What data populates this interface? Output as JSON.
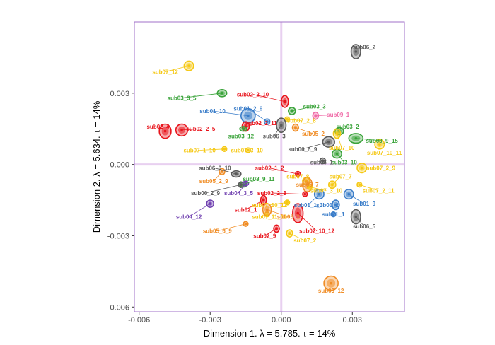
{
  "chart_data": {
    "type": "scatter",
    "title": "",
    "xlabel": "Dimension 1.   λ = 5.785.  τ = 14%",
    "ylabel": "Dimension 2.   λ = 5.634.  τ = 14%",
    "xlim": [
      -0.0062,
      0.0052
    ],
    "ylim": [
      -0.0062,
      0.006
    ],
    "x_ticks": [
      -0.006,
      -0.003,
      0.0,
      0.003
    ],
    "x_tick_labels": [
      "-0.006",
      "-0.003",
      "0.000",
      "0.003"
    ],
    "y_ticks": [
      -0.006,
      -0.003,
      0.0,
      0.003
    ],
    "y_tick_labels": [
      "-0.006",
      "-0.003",
      "0.000",
      "0.003"
    ],
    "grid": false,
    "zero_lines": true,
    "legend": "none",
    "colors": {
      "sub01": "#3a7dc9",
      "sub02": "#e8141c",
      "sub03": "#3aa33a",
      "sub04": "#7040b0",
      "sub05": "#f08c24",
      "sub06": "#5a5a5a",
      "sub07": "#f5c814",
      "sub09": "#f06ca8",
      "frame": "#a070c8",
      "zero_line": "#e8d0f0"
    },
    "points": [
      {
        "label": "sub06_2",
        "x": 0.00315,
        "y": 0.00475,
        "g": "sub06",
        "rx": 0.0002,
        "ry": 0.0003,
        "lx": 0.0035,
        "ly": 0.00495
      },
      {
        "label": "sub07_12",
        "x": -0.0039,
        "y": 0.00415,
        "g": "sub07",
        "rx": 0.0002,
        "ry": 0.0002,
        "lx": -0.0049,
        "ly": 0.0039
      },
      {
        "label": "sub03_3_5",
        "x": -0.0025,
        "y": 0.003,
        "g": "sub03",
        "rx": 0.0002,
        "ry": 0.00015,
        "lx": -0.0042,
        "ly": 0.0028
      },
      {
        "label": "sub02_2_10",
        "x": 0.00015,
        "y": 0.00265,
        "g": "sub02",
        "rx": 0.00015,
        "ry": 0.00025,
        "lx": -0.0012,
        "ly": 0.00295
      },
      {
        "label": "sub03_3",
        "x": 0.00045,
        "y": 0.00225,
        "g": "sub03",
        "rx": 0.00015,
        "ry": 0.00015,
        "lx": 0.0014,
        "ly": 0.00245
      },
      {
        "label": "sub01_10",
        "x": -0.0014,
        "y": 0.00205,
        "g": "sub01",
        "rx": 0.0003,
        "ry": 0.0003,
        "lx": -0.0029,
        "ly": 0.00225
      },
      {
        "label": "sub01_2_9",
        "x": -0.0006,
        "y": 0.0018,
        "g": "sub01",
        "rx": 0.00012,
        "ry": 0.00012,
        "lx": -0.0014,
        "ly": 0.00235
      },
      {
        "label": "sub09_1",
        "x": 0.00145,
        "y": 0.00205,
        "g": "sub09",
        "rx": 0.00012,
        "ry": 0.00015,
        "lx": 0.0024,
        "ly": 0.0021
      },
      {
        "label": "sub07_2_8",
        "x": 0.00025,
        "y": 0.0019,
        "g": "sub07",
        "rx": 0.0001,
        "ry": 0.0001,
        "lx": 0.00085,
        "ly": 0.00185
      },
      {
        "label": "sub02_2_11",
        "x": -0.0015,
        "y": 0.0016,
        "g": "sub02",
        "rx": 0.00015,
        "ry": 0.0002,
        "lx": -0.00085,
        "ly": 0.00175
      },
      {
        "label": "sub02_4",
        "x": -0.0049,
        "y": 0.0014,
        "g": "sub02",
        "rx": 0.00025,
        "ry": 0.0003,
        "lx": -0.0052,
        "ly": 0.0016
      },
      {
        "label": "sub02_2_5",
        "x": -0.0042,
        "y": 0.00145,
        "g": "sub02",
        "rx": 0.00025,
        "ry": 0.00025,
        "lx": -0.0034,
        "ly": 0.0015
      },
      {
        "label": "sub03_12",
        "x": -0.0016,
        "y": 0.0015,
        "g": "sub03",
        "rx": 0.00015,
        "ry": 0.0001,
        "lx": -0.0017,
        "ly": 0.0012
      },
      {
        "label": "sub06_3",
        "x": 0.0,
        "y": 0.00165,
        "g": "sub06",
        "rx": 0.0002,
        "ry": 0.0003,
        "lx": -0.0003,
        "ly": 0.0012
      },
      {
        "label": "sub05_2",
        "x": 0.0006,
        "y": 0.00155,
        "g": "sub05",
        "rx": 0.00013,
        "ry": 0.00015,
        "lx": 0.00135,
        "ly": 0.0013
      },
      {
        "label": "sub03_2",
        "x": 0.00245,
        "y": 0.0014,
        "g": "sub03",
        "rx": 0.00018,
        "ry": 0.00015,
        "lx": 0.0028,
        "ly": 0.0016
      },
      {
        "label": "sub06_6_9",
        "x": 0.002,
        "y": 0.00095,
        "g": "sub06",
        "rx": 0.00025,
        "ry": 0.00022,
        "lx": 0.0009,
        "ly": 0.00065
      },
      {
        "label": "sub03_9_15",
        "x": 0.00315,
        "y": 0.0011,
        "g": "sub03",
        "rx": 0.0003,
        "ry": 0.0002,
        "lx": 0.00425,
        "ly": 0.001
      },
      {
        "label": "sub07_10",
        "x": 0.00235,
        "y": 0.0013,
        "g": "sub07",
        "rx": 0.00015,
        "ry": 0.0002,
        "lx": 0.00255,
        "ly": 0.0007
      },
      {
        "label": "sub07_1_10",
        "x": -0.0024,
        "y": 0.00065,
        "g": "sub07",
        "rx": 0.0001,
        "ry": 0.0001,
        "lx": -0.00345,
        "ly": 0.0006
      },
      {
        "label": "sub07_3_10",
        "x": -0.0014,
        "y": 0.0006,
        "g": "sub07",
        "rx": 0.0001,
        "ry": 0.0001,
        "lx": -0.00145,
        "ly": 0.0006
      },
      {
        "label": "sub03_10",
        "x": 0.00235,
        "y": 0.00045,
        "g": "sub03",
        "rx": 0.0002,
        "ry": 0.00018,
        "lx": 0.00265,
        "ly": 0.0001
      },
      {
        "label": "sub07_10_11",
        "x": 0.00415,
        "y": 0.00085,
        "g": "sub07",
        "rx": 0.0002,
        "ry": 0.0002,
        "lx": 0.00435,
        "ly": 0.0005
      },
      {
        "label": "sub06_1",
        "x": 0.00175,
        "y": 0.00015,
        "g": "sub06",
        "rx": 0.00012,
        "ry": 0.00012,
        "lx": 0.0017,
        "ly": 0.0001
      },
      {
        "label": "sub07_2_9",
        "x": 0.0034,
        "y": -0.00015,
        "g": "sub07",
        "rx": 0.0002,
        "ry": 0.0002,
        "lx": 0.0042,
        "ly": -0.00015
      },
      {
        "label": "sub06_9_10",
        "x": -0.0019,
        "y": -0.0004,
        "g": "sub06",
        "rx": 0.0002,
        "ry": 0.00013,
        "lx": -0.0028,
        "ly": -0.00015
      },
      {
        "label": "sub02_1_2",
        "x": 0.0007,
        "y": -0.0004,
        "g": "sub02",
        "rx": 0.0001,
        "ry": 0.0001,
        "lx": -0.0005,
        "ly": -0.00015
      },
      {
        "label": "sub05_2_9",
        "x": -0.0025,
        "y": -0.0003,
        "g": "sub05",
        "rx": 0.00012,
        "ry": 0.00013,
        "lx": -0.00285,
        "ly": -0.0007
      },
      {
        "label": "sub03_9_11",
        "x": -0.0016,
        "y": -0.00085,
        "g": "sub03",
        "rx": 0.00015,
        "ry": 0.0001,
        "lx": -0.00095,
        "ly": -0.0006
      },
      {
        "label": "sub07_8",
        "x": 0.00105,
        "y": -0.0007,
        "g": "sub07",
        "rx": 0.00015,
        "ry": 0.00015,
        "lx": 0.0007,
        "ly": -0.0005
      },
      {
        "label": "sub06_2_9",
        "x": -0.0017,
        "y": -0.00085,
        "g": "sub06",
        "rx": 0.0001,
        "ry": 0.00012,
        "lx": -0.0032,
        "ly": -0.0012
      },
      {
        "label": "sub04_3_5",
        "x": -0.0015,
        "y": -0.0008,
        "g": "sub04",
        "rx": 0.00012,
        "ry": 0.0001,
        "lx": -0.0018,
        "ly": -0.0012
      },
      {
        "label": "sub05_7",
        "x": 0.0011,
        "y": -0.00085,
        "g": "sub05",
        "rx": 0.0002,
        "ry": 0.0003,
        "lx": 0.0011,
        "ly": -0.00085
      },
      {
        "label": "sub07_7",
        "x": 0.00215,
        "y": -0.00085,
        "g": "sub07",
        "rx": 0.00015,
        "ry": 0.00015,
        "lx": 0.0025,
        "ly": -0.0005
      },
      {
        "label": "sub07_3_10",
        "x": 0.0012,
        "y": -0.00095,
        "g": "sub07",
        "rx": 0.0001,
        "ry": 0.0001,
        "lx": 0.0019,
        "ly": -0.0011
      },
      {
        "label": "sub07_2_11",
        "x": 0.0033,
        "y": -0.00085,
        "g": "sub07",
        "rx": 0.0001,
        "ry": 0.0001,
        "lx": 0.0041,
        "ly": -0.0011
      },
      {
        "label": "sub02_2_3",
        "x": 0.001,
        "y": -0.00125,
        "g": "sub02",
        "rx": 0.0001,
        "ry": 0.0001,
        "lx": -0.0004,
        "ly": -0.0012
      },
      {
        "label": "sub04_12",
        "x": -0.003,
        "y": -0.00165,
        "g": "sub04",
        "rx": 0.00015,
        "ry": 0.00015,
        "lx": -0.0039,
        "ly": -0.0022
      },
      {
        "label": "sub02_1",
        "x": -0.00075,
        "y": -0.0015,
        "g": "sub02",
        "rx": 0.00012,
        "ry": 0.0002,
        "lx": -0.0015,
        "ly": -0.0019
      },
      {
        "label": "sub01_1_3",
        "x": 0.0016,
        "y": -0.00125,
        "g": "sub01",
        "rx": 0.0002,
        "ry": 0.0002,
        "lx": 0.00115,
        "ly": -0.0017
      },
      {
        "label": "sub01_2",
        "x": 0.0023,
        "y": -0.0017,
        "g": "sub01",
        "rx": 0.00015,
        "ry": 0.0002,
        "lx": 0.00195,
        "ly": -0.0017
      },
      {
        "label": "sub01_9",
        "x": 0.00285,
        "y": -0.00125,
        "g": "sub01",
        "rx": 0.0002,
        "ry": 0.0002,
        "lx": 0.0035,
        "ly": -0.00165
      },
      {
        "label": "sub07_10_12",
        "x": 0.00025,
        "y": -0.0016,
        "g": "sub07",
        "rx": 0.0001,
        "ry": 0.0001,
        "lx": -0.0005,
        "ly": -0.0017
      },
      {
        "label": "sub07_11_12",
        "x": -0.0006,
        "y": -0.0021,
        "g": "sub07",
        "rx": 0.0001,
        "ry": 0.0001,
        "lx": -0.0005,
        "ly": -0.0022
      },
      {
        "label": "sub05_1",
        "x": -0.0006,
        "y": -0.0019,
        "g": "sub05",
        "rx": 0.00018,
        "ry": 0.00025,
        "lx": 0.0003,
        "ly": -0.0022
      },
      {
        "label": "sub01_1",
        "x": 0.0022,
        "y": -0.0021,
        "g": "sub01",
        "rx": 0.0001,
        "ry": 0.0001,
        "lx": 0.0022,
        "ly": -0.0021
      },
      {
        "label": "sub06_5",
        "x": 0.00315,
        "y": -0.0022,
        "g": "sub06",
        "rx": 0.0002,
        "ry": 0.0003,
        "lx": 0.0035,
        "ly": -0.0026
      },
      {
        "label": "sub05_6_9",
        "x": -0.0015,
        "y": -0.0025,
        "g": "sub05",
        "rx": 0.0001,
        "ry": 0.0001,
        "lx": -0.0027,
        "ly": -0.0028
      },
      {
        "label": "sub02_10_12",
        "x": 0.0007,
        "y": -0.00205,
        "g": "sub02",
        "rx": 0.00022,
        "ry": 0.0004,
        "lx": 0.0015,
        "ly": -0.0028
      },
      {
        "label": "sub02_9",
        "x": -0.0002,
        "y": -0.0027,
        "g": "sub02",
        "rx": 0.00012,
        "ry": 0.00015,
        "lx": -0.0007,
        "ly": -0.003
      },
      {
        "label": "sub07_2",
        "x": 0.00035,
        "y": -0.0029,
        "g": "sub07",
        "rx": 0.00013,
        "ry": 0.00015,
        "lx": 0.001,
        "ly": -0.0032
      },
      {
        "label": "sub03_12",
        "x": 0.0021,
        "y": -0.005,
        "g": "sub05",
        "rx": 0.0003,
        "ry": 0.0003,
        "lx": 0.0021,
        "ly": -0.0053
      }
    ]
  }
}
